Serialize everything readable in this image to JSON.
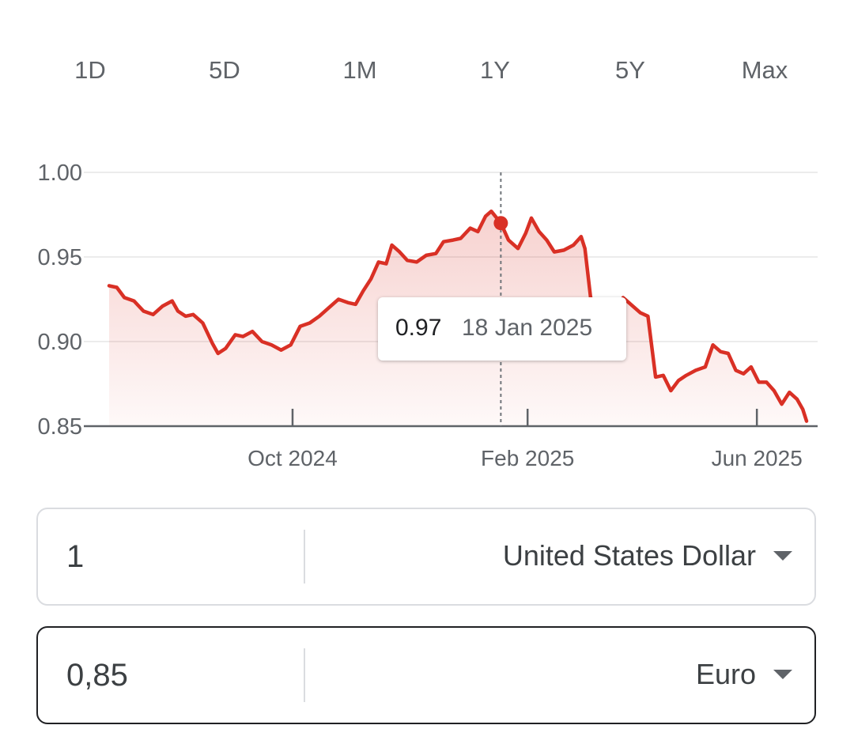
{
  "range_tabs": [
    {
      "label": "1D",
      "active": false
    },
    {
      "label": "5D",
      "active": false
    },
    {
      "label": "1M",
      "active": false
    },
    {
      "label": "1Y",
      "active": true
    },
    {
      "label": "5Y",
      "active": false
    },
    {
      "label": "Max",
      "active": false
    }
  ],
  "tooltip": {
    "value": "0.97",
    "date": "18 Jan 2025"
  },
  "converter": {
    "from": {
      "amount": "1",
      "currency": "United States Dollar"
    },
    "to": {
      "amount": "0,85",
      "currency": "Euro"
    }
  },
  "colors": {
    "line": "#d93025",
    "active_tab_text": "#1a57c8",
    "active_tab_bg": "#f0f3f8"
  },
  "chart_data": {
    "type": "line",
    "x_tick_labels": [
      "Oct 2024",
      "Feb 2025",
      "Jun 2025"
    ],
    "y_tick_labels": [
      "1.00",
      "0.95",
      "0.90",
      "0.85"
    ],
    "ylim": [
      0.85,
      1.0
    ],
    "grid": true,
    "highlight": {
      "date": "18 Jan 2025",
      "value": 0.97
    },
    "series": [
      {
        "points": [
          [
            "2024-06-27",
            0.933
          ],
          [
            "2024-07-01",
            0.932
          ],
          [
            "2024-07-05",
            0.926
          ],
          [
            "2024-07-10",
            0.924
          ],
          [
            "2024-07-15",
            0.918
          ],
          [
            "2024-07-20",
            0.916
          ],
          [
            "2024-07-25",
            0.921
          ],
          [
            "2024-07-30",
            0.924
          ],
          [
            "2024-08-02",
            0.918
          ],
          [
            "2024-08-06",
            0.915
          ],
          [
            "2024-08-10",
            0.916
          ],
          [
            "2024-08-15",
            0.911
          ],
          [
            "2024-08-20",
            0.899
          ],
          [
            "2024-08-23",
            0.893
          ],
          [
            "2024-08-27",
            0.896
          ],
          [
            "2024-09-01",
            0.904
          ],
          [
            "2024-09-05",
            0.903
          ],
          [
            "2024-09-10",
            0.906
          ],
          [
            "2024-09-15",
            0.9
          ],
          [
            "2024-09-20",
            0.898
          ],
          [
            "2024-09-25",
            0.895
          ],
          [
            "2024-09-30",
            0.898
          ],
          [
            "2024-10-05",
            0.909
          ],
          [
            "2024-10-10",
            0.911
          ],
          [
            "2024-10-15",
            0.915
          ],
          [
            "2024-10-20",
            0.92
          ],
          [
            "2024-10-25",
            0.925
          ],
          [
            "2024-10-30",
            0.923
          ],
          [
            "2024-11-03",
            0.922
          ],
          [
            "2024-11-07",
            0.93
          ],
          [
            "2024-11-11",
            0.937
          ],
          [
            "2024-11-15",
            0.947
          ],
          [
            "2024-11-19",
            0.946
          ],
          [
            "2024-11-22",
            0.957
          ],
          [
            "2024-11-26",
            0.953
          ],
          [
            "2024-11-30",
            0.948
          ],
          [
            "2024-12-05",
            0.947
          ],
          [
            "2024-12-10",
            0.951
          ],
          [
            "2024-12-15",
            0.952
          ],
          [
            "2024-12-19",
            0.959
          ],
          [
            "2024-12-24",
            0.96
          ],
          [
            "2024-12-28",
            0.961
          ],
          [
            "2025-01-02",
            0.967
          ],
          [
            "2025-01-06",
            0.965
          ],
          [
            "2025-01-10",
            0.974
          ],
          [
            "2025-01-13",
            0.977
          ],
          [
            "2025-01-18",
            0.97
          ],
          [
            "2025-01-22",
            0.96
          ],
          [
            "2025-01-27",
            0.955
          ],
          [
            "2025-01-31",
            0.964
          ],
          [
            "2025-02-03",
            0.973
          ],
          [
            "2025-02-07",
            0.965
          ],
          [
            "2025-02-11",
            0.96
          ],
          [
            "2025-02-15",
            0.953
          ],
          [
            "2025-02-20",
            0.954
          ],
          [
            "2025-02-25",
            0.957
          ],
          [
            "2025-03-01",
            0.962
          ],
          [
            "2025-03-03",
            0.955
          ],
          [
            "2025-03-06",
            0.926
          ],
          [
            "2025-03-10",
            0.921
          ],
          [
            "2025-03-14",
            0.92
          ],
          [
            "2025-03-18",
            0.916
          ],
          [
            "2025-03-23",
            0.926
          ],
          [
            "2025-03-27",
            0.922
          ],
          [
            "2025-04-01",
            0.917
          ],
          [
            "2025-04-05",
            0.915
          ],
          [
            "2025-04-09",
            0.879
          ],
          [
            "2025-04-13",
            0.88
          ],
          [
            "2025-04-17",
            0.871
          ],
          [
            "2025-04-21",
            0.877
          ],
          [
            "2025-04-25",
            0.88
          ],
          [
            "2025-04-30",
            0.883
          ],
          [
            "2025-05-05",
            0.885
          ],
          [
            "2025-05-09",
            0.898
          ],
          [
            "2025-05-13",
            0.894
          ],
          [
            "2025-05-17",
            0.893
          ],
          [
            "2025-05-21",
            0.883
          ],
          [
            "2025-05-25",
            0.881
          ],
          [
            "2025-05-29",
            0.885
          ],
          [
            "2025-06-02",
            0.876
          ],
          [
            "2025-06-06",
            0.876
          ],
          [
            "2025-06-10",
            0.871
          ],
          [
            "2025-06-14",
            0.863
          ],
          [
            "2025-06-18",
            0.87
          ],
          [
            "2025-06-22",
            0.866
          ],
          [
            "2025-06-25",
            0.86
          ],
          [
            "2025-06-27",
            0.853
          ]
        ]
      }
    ]
  }
}
